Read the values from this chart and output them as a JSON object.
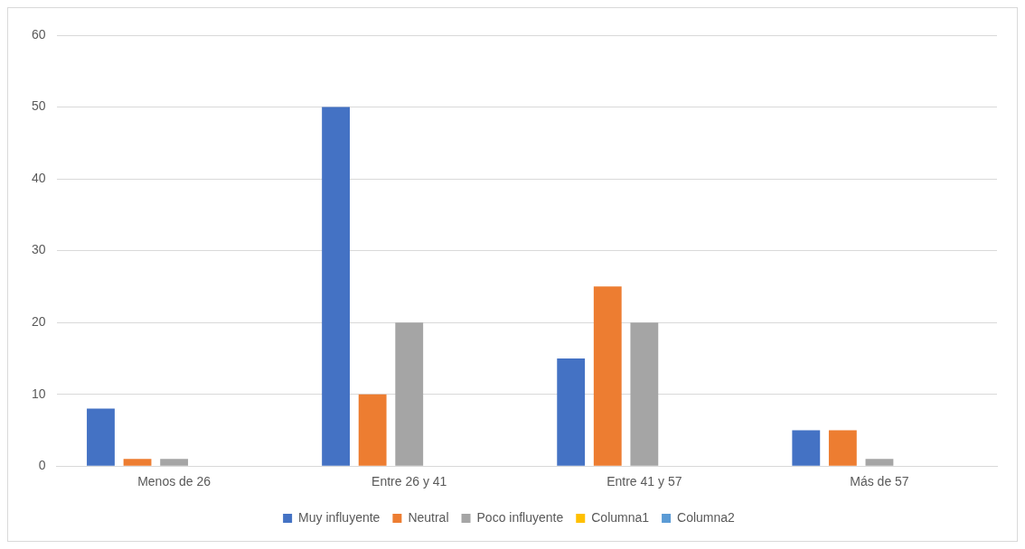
{
  "chart_data": {
    "type": "bar",
    "categories": [
      "Menos de 26",
      "Entre 26 y 41",
      "Entre 41 y 57",
      "Más de 57"
    ],
    "series": [
      {
        "name": "Muy influyente",
        "color": "#4472c4",
        "values": [
          8,
          50,
          15,
          5
        ]
      },
      {
        "name": "Neutral",
        "color": "#ed7d31",
        "values": [
          1,
          10,
          25,
          5
        ]
      },
      {
        "name": "Poco influyente",
        "color": "#a5a5a5",
        "values": [
          1,
          20,
          20,
          1
        ]
      },
      {
        "name": "Columna1",
        "color": "#ffc000",
        "values": [
          null,
          null,
          null,
          null
        ]
      },
      {
        "name": "Columna2",
        "color": "#5b9bd5",
        "values": [
          null,
          null,
          null,
          null
        ]
      }
    ],
    "ylim": [
      0,
      60
    ],
    "yticks": [
      0,
      10,
      20,
      30,
      40,
      50,
      60
    ],
    "grid": "y",
    "legend": "bottom"
  }
}
